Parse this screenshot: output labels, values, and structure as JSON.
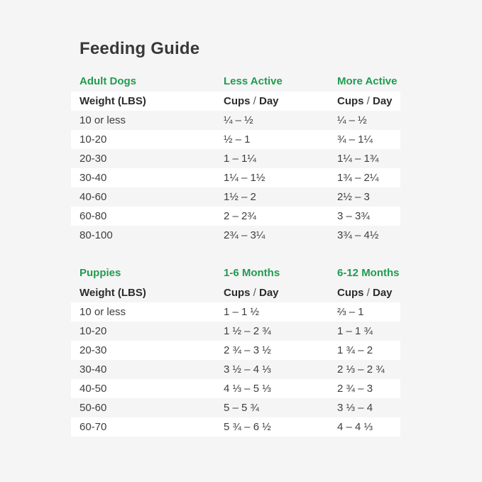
{
  "page": {
    "title": "Feeding Guide"
  },
  "colors": {
    "accent_green": "#209c4e",
    "page_bg": "#f5f5f6",
    "row_white": "#ffffff",
    "text_dark": "#39393b"
  },
  "sections": [
    {
      "name": "adult-dogs",
      "headers": [
        "Adult Dogs",
        "Less Active",
        "More Active"
      ],
      "subheaders": [
        "Weight (LBS)",
        "Cups / Day",
        "Cups / Day"
      ],
      "subheader_white": true,
      "zebra_offset": 1,
      "rows": [
        [
          "10 or less",
          "¼ – ½",
          "¼ – ½"
        ],
        [
          "10-20",
          "½ – 1",
          "¾ – 1¼"
        ],
        [
          "20-30",
          "1 – 1¼",
          "1¼ – 1¾"
        ],
        [
          "30-40",
          "1¼ – 1½",
          "1¾ – 2¼"
        ],
        [
          "40-60",
          "1½ – 2",
          "2½ – 3"
        ],
        [
          "60-80",
          "2 – 2¾",
          "3 – 3¾"
        ],
        [
          "80-100",
          "2¾ – 3¼",
          "3¾ – 4½"
        ]
      ]
    },
    {
      "name": "puppies",
      "headers": [
        "Puppies",
        "1-6 Months",
        "6-12 Months"
      ],
      "subheaders": [
        "Weight (LBS)",
        "Cups / Day",
        "Cups / Day"
      ],
      "subheader_white": false,
      "zebra_offset": 0,
      "rows": [
        [
          "10 or less",
          "1 – 1 ½",
          "⅔ – 1"
        ],
        [
          "10-20",
          "1 ½ – 2 ¾",
          "1 – 1 ¾"
        ],
        [
          "20-30",
          "2 ¾ – 3 ½",
          "1 ¾ – 2"
        ],
        [
          "30-40",
          "3 ½ – 4 ⅓",
          "2 ⅓ – 2 ¾"
        ],
        [
          "40-50",
          "4 ⅓ – 5 ⅓",
          "2 ¾ – 3"
        ],
        [
          "50-60",
          "5 – 5 ¾",
          "3 ⅓ – 4"
        ],
        [
          "60-70",
          "5 ¾ – 6 ½",
          "4 – 4 ⅓"
        ]
      ]
    }
  ],
  "chart_data": [
    {
      "type": "table",
      "title": "Adult Dogs",
      "columns": [
        "Weight (LBS)",
        "Less Active Cups / Day",
        "More Active Cups / Day"
      ],
      "rows": [
        [
          "10 or less",
          "¼ – ½",
          "¼ – ½"
        ],
        [
          "10-20",
          "½ – 1",
          "¾ – 1¼"
        ],
        [
          "20-30",
          "1 – 1¼",
          "1¼ – 1¾"
        ],
        [
          "30-40",
          "1¼ – 1½",
          "1¾ – 2¼"
        ],
        [
          "40-60",
          "1½ – 2",
          "2½ – 3"
        ],
        [
          "60-80",
          "2 – 2¾",
          "3 – 3¾"
        ],
        [
          "80-100",
          "2¾ – 3¼",
          "3¾ – 4½"
        ]
      ]
    },
    {
      "type": "table",
      "title": "Puppies",
      "columns": [
        "Weight (LBS)",
        "1-6 Months Cups / Day",
        "6-12 Months Cups / Day"
      ],
      "rows": [
        [
          "10 or less",
          "1 – 1 ½",
          "⅔ – 1"
        ],
        [
          "10-20",
          "1 ½ – 2 ¾",
          "1 – 1 ¾"
        ],
        [
          "20-30",
          "2 ¾ – 3 ½",
          "1 ¾ – 2"
        ],
        [
          "30-40",
          "3 ½ – 4 ⅓",
          "2 ⅓ – 2 ¾"
        ],
        [
          "40-50",
          "4 ⅓ – 5 ⅓",
          "2 ¾ – 3"
        ],
        [
          "50-60",
          "5 – 5 ¾",
          "3 ⅓ – 4"
        ],
        [
          "60-70",
          "5 ¾ – 6 ½",
          "4 – 4 ⅓"
        ]
      ]
    }
  ]
}
